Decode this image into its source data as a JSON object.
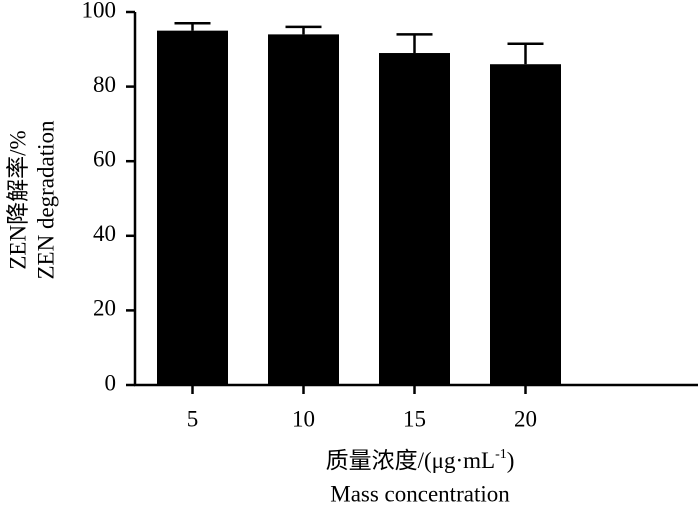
{
  "chart_data": {
    "type": "bar",
    "categories": [
      "5",
      "10",
      "15",
      "20"
    ],
    "values": [
      95,
      94,
      89,
      86
    ],
    "errors": [
      2,
      2,
      5,
      5.5
    ],
    "color": "#000000",
    "ylim": [
      0,
      100
    ],
    "yticks": [
      0,
      20,
      40,
      60,
      80,
      100
    ],
    "y_label": "ZEN降解率/%",
    "y_label_2": "ZEN degradation",
    "x_label": "质量浓度/(μg·mL",
    "x_label_sup": "-1",
    "x_label_end": ")",
    "x_label_2": "Mass concentration"
  }
}
